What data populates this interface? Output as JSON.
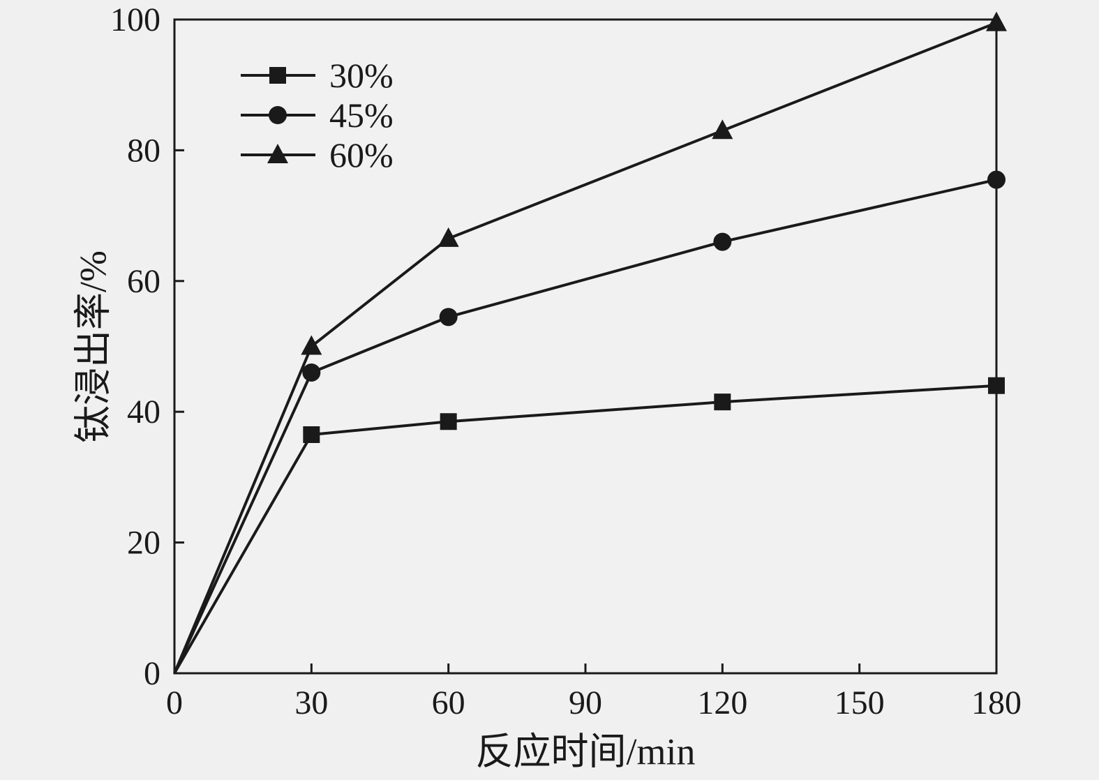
{
  "page": {
    "background": "#f0f0f0"
  },
  "chart_data": {
    "type": "line",
    "title": "",
    "xlabel": "反应时间/min",
    "ylabel": "钛浸出率/%",
    "x": [
      0,
      30,
      60,
      120,
      180
    ],
    "series": [
      {
        "name": "30%",
        "marker": "square",
        "values": [
          0,
          36.5,
          38.5,
          41.5,
          44
        ]
      },
      {
        "name": "45%",
        "marker": "circle",
        "values": [
          0,
          46,
          54.5,
          66,
          75.5
        ]
      },
      {
        "name": "60%",
        "marker": "triangle",
        "values": [
          0,
          50,
          66.5,
          83,
          99.5
        ]
      }
    ],
    "xlim": [
      0,
      180
    ],
    "ylim": [
      0,
      100
    ],
    "xticks": [
      0,
      30,
      60,
      90,
      120,
      150,
      180
    ],
    "yticks": [
      0,
      20,
      40,
      60,
      80,
      100
    ],
    "grid": false,
    "legend_position": "top-left",
    "colors": {
      "line": "#1a1a1a",
      "axis": "#1a1a1a",
      "text": "#1a1a1a",
      "background": "#f0f0f0",
      "plot_background": "#f1f1f1"
    }
  }
}
